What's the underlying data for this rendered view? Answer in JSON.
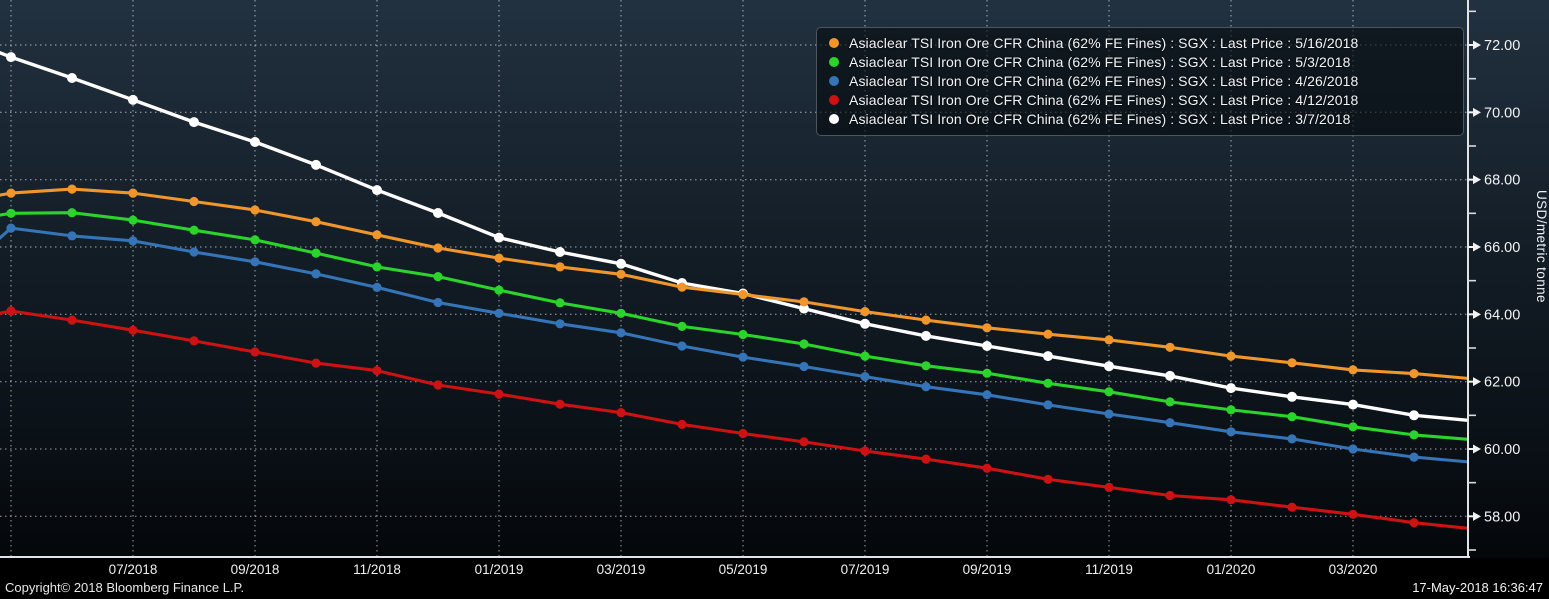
{
  "footer": {
    "copyright": "Copyright© 2018 Bloomberg Finance L.P.",
    "timestamp": "17-May-2018 16:36:47"
  },
  "chart_data": {
    "type": "line",
    "title": "",
    "ylabel": "USD/metric tonne",
    "x_months": [
      "05/2018",
      "06/2018",
      "07/2018",
      "08/2018",
      "09/2018",
      "10/2018",
      "11/2018",
      "12/2018",
      "01/2019",
      "02/2019",
      "03/2019",
      "04/2019",
      "05/2019",
      "06/2019",
      "07/2019",
      "08/2019",
      "09/2019",
      "10/2019",
      "11/2019",
      "12/2019",
      "01/2020",
      "02/2020",
      "03/2020",
      "04/2020"
    ],
    "x_axis_labels": [
      "07/2018",
      "09/2018",
      "11/2018",
      "01/2019",
      "03/2019",
      "05/2019",
      "07/2019",
      "09/2019",
      "11/2019",
      "01/2020",
      "03/2020"
    ],
    "x_axis_label_month_indices": [
      2,
      4,
      6,
      8,
      10,
      12,
      14,
      16,
      18,
      20,
      22
    ],
    "ylim": [
      56.8,
      73.3
    ],
    "y_ticks": [
      58,
      60,
      62,
      64,
      66,
      68,
      70,
      72
    ],
    "y_minor_ticks": [
      57,
      59,
      61,
      63,
      65,
      67,
      69,
      71,
      73
    ],
    "grid": true,
    "legend_position": "top-right",
    "series": [
      {
        "name": "Asiaclear TSI Iron Ore CFR China (62% FE Fines) : SGX : Last Price : 5/16/2018",
        "date": "5/16/2018",
        "color": "#f0962b",
        "values": [
          67.6,
          67.72,
          67.6,
          67.35,
          67.1,
          66.75,
          66.36,
          65.97,
          65.67,
          65.41,
          65.19,
          64.81,
          64.59,
          64.37,
          64.08,
          63.83,
          63.6,
          63.41,
          63.24,
          63.02,
          62.76,
          62.56,
          62.35,
          62.24
        ],
        "edge_left_value": 67.28,
        "edge_right_value": 62.08
      },
      {
        "name": "Asiaclear TSI Iron Ore CFR China (62% FE Fines) : SGX : Last Price : 5/3/2018",
        "date": "5/3/2018",
        "color": "#2bd42b",
        "values": [
          67.0,
          67.02,
          66.8,
          66.5,
          66.21,
          65.82,
          65.41,
          65.12,
          64.72,
          64.34,
          64.03,
          63.64,
          63.4,
          63.12,
          62.76,
          62.47,
          62.25,
          61.95,
          61.7,
          61.4,
          61.16,
          60.96,
          60.66,
          60.42
        ],
        "edge_left_value": 66.72,
        "edge_right_value": 60.27
      },
      {
        "name": "Asiaclear TSI Iron Ore CFR China (62% FE Fines) : SGX : Last Price : 4/26/2018",
        "date": "4/26/2018",
        "color": "#3474b7",
        "values": [
          66.56,
          66.33,
          66.18,
          65.85,
          65.56,
          65.2,
          64.8,
          64.35,
          64.03,
          63.72,
          63.45,
          63.06,
          62.73,
          62.45,
          62.15,
          61.85,
          61.61,
          61.31,
          61.04,
          60.78,
          60.51,
          60.3,
          60.0,
          59.76
        ],
        "edge_left_value": 64.95,
        "edge_right_value": 59.6
      },
      {
        "name": "Asiaclear TSI Iron Ore CFR China (62% FE Fines) : SGX : Last Price : 4/12/2018",
        "date": "4/12/2018",
        "color": "#cc1212",
        "values": [
          64.1,
          63.83,
          63.53,
          63.21,
          62.88,
          62.55,
          62.33,
          61.9,
          61.63,
          61.33,
          61.08,
          60.73,
          60.46,
          60.21,
          59.94,
          59.7,
          59.43,
          59.1,
          58.86,
          58.62,
          58.49,
          58.27,
          58.06,
          57.81
        ],
        "edge_left_value": 63.73,
        "edge_right_value": 57.62
      },
      {
        "name": "Asiaclear TSI Iron Ore CFR China (62% FE Fines) : SGX : Last Price : 3/7/2018",
        "date": "3/7/2018",
        "color": "#ffffff",
        "values": [
          71.64,
          71.02,
          70.37,
          69.71,
          69.12,
          68.44,
          67.69,
          67.01,
          66.28,
          65.85,
          65.5,
          64.93,
          64.62,
          64.17,
          63.72,
          63.36,
          63.06,
          62.76,
          62.46,
          62.17,
          61.81,
          61.55,
          61.32,
          61.0
        ],
        "edge_left_value": 72.35,
        "edge_right_value": 60.83
      }
    ]
  }
}
